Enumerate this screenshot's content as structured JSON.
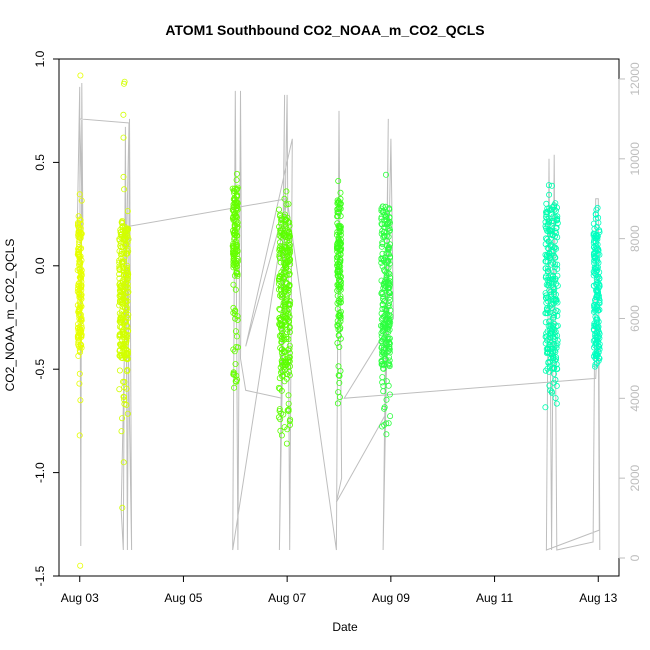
{
  "chart_data": {
    "type": "scatter",
    "title": "ATOM1 Southbound CO2_NOAA_m_CO2_QCLS",
    "xlabel": "Date",
    "ylabel": "CO2_NOAA_m_CO2_QCLS",
    "x_unit": "days since Aug 03",
    "xlim": [
      -0.4,
      10.4
    ],
    "ylim": [
      -1.5,
      1.0
    ],
    "y2lim": [
      0,
      12500
    ],
    "x_ticks": [
      {
        "value": 0,
        "label": "Aug 03"
      },
      {
        "value": 2,
        "label": "Aug 05"
      },
      {
        "value": 4,
        "label": "Aug 07"
      },
      {
        "value": 6,
        "label": "Aug 09"
      },
      {
        "value": 8,
        "label": "Aug 11"
      },
      {
        "value": 10,
        "label": "Aug 13"
      }
    ],
    "y_ticks": [
      {
        "value": -1.5,
        "label": "-1.5"
      },
      {
        "value": -1.0,
        "label": "-1.0"
      },
      {
        "value": -0.5,
        "label": "-0.5"
      },
      {
        "value": 0.0,
        "label": "0.0"
      },
      {
        "value": 0.5,
        "label": "0.5"
      },
      {
        "value": 1.0,
        "label": "1.0"
      }
    ],
    "y2_ticks": [
      {
        "value": 0,
        "label": "0"
      },
      {
        "value": 2000,
        "label": "2000"
      },
      {
        "value": 4000,
        "label": "4000"
      },
      {
        "value": 6000,
        "label": "6000"
      },
      {
        "value": 8000,
        "label": "8000"
      },
      {
        "value": 10000,
        "label": "10000"
      },
      {
        "value": 12000,
        "label": "12000"
      }
    ],
    "colors": {
      "altitude_line": "#bebebe",
      "points": [
        "#e6ff00",
        "#d2ff00",
        "#66ff00",
        "#5cff00",
        "#3dff1a",
        "#2dff40",
        "#00ffb0",
        "#00ffc0"
      ],
      "axes": "#000000",
      "right_axis": "#bdbdbd"
    },
    "clusters": [
      {
        "x": 0.0,
        "half_width": 0.04,
        "y_min": -0.6,
        "y_max": 0.35,
        "dense_min": -0.4,
        "dense_max": 0.25,
        "outliers": [
          0.92,
          -0.65,
          -0.82,
          -1.45
        ],
        "color": "#e6ff00",
        "n": 160
      },
      {
        "x": 0.85,
        "half_width": 0.09,
        "y_min": -0.75,
        "y_max": 0.3,
        "dense_min": -0.45,
        "dense_max": 0.2,
        "outliers": [
          0.89,
          0.88,
          0.73,
          0.62,
          0.43,
          0.37,
          -0.8,
          -1.17,
          -0.95
        ],
        "color": "#d2ff00",
        "n": 260
      },
      {
        "x": 3.0,
        "half_width": 0.05,
        "y_min": -0.6,
        "y_max": 0.45,
        "dense_min": -0.05,
        "dense_max": 0.38,
        "outliers": [
          -0.59
        ],
        "color": "#66ff00",
        "n": 150
      },
      {
        "x": 3.95,
        "half_width": 0.11,
        "y_min": -0.8,
        "y_max": 0.35,
        "dense_min": -0.55,
        "dense_max": 0.25,
        "outliers": [
          -0.82,
          -0.86,
          0.36
        ],
        "color": "#5cff00",
        "n": 280
      },
      {
        "x": 5.0,
        "half_width": 0.04,
        "y_min": -0.67,
        "y_max": 0.41,
        "dense_min": -0.35,
        "dense_max": 0.33,
        "outliers": [
          0.41
        ],
        "color": "#3dff1a",
        "n": 150
      },
      {
        "x": 5.9,
        "half_width": 0.09,
        "y_min": -0.83,
        "y_max": 0.29,
        "dense_min": -0.5,
        "dense_max": 0.28,
        "outliers": [
          0.44
        ],
        "color": "#2dff40",
        "n": 240
      },
      {
        "x": 9.1,
        "half_width": 0.12,
        "y_min": -0.75,
        "y_max": 0.39,
        "dense_min": -0.5,
        "dense_max": 0.3,
        "outliers": [
          0.39
        ],
        "color": "#00ffb0",
        "n": 260
      },
      {
        "x": 9.97,
        "half_width": 0.06,
        "y_min": -0.5,
        "y_max": 0.28,
        "dense_min": -0.45,
        "dense_max": 0.18,
        "outliers": [
          0.28,
          0.25
        ],
        "color": "#00ffc0",
        "n": 180
      }
    ],
    "altitude_track": [
      [
        -0.05,
        8000
      ],
      [
        0.0,
        11800
      ],
      [
        0.02,
        300
      ],
      [
        0.04,
        11900
      ],
      [
        0.06,
        8100
      ],
      [
        0.0,
        11000
      ],
      [
        0.95,
        10900
      ],
      [
        0.8,
        1200
      ],
      [
        0.84,
        200
      ],
      [
        0.88,
        10800
      ],
      [
        0.92,
        200
      ],
      [
        0.96,
        11000
      ],
      [
        1.0,
        200
      ],
      [
        0.9,
        8300
      ],
      [
        4.0,
        9000
      ],
      [
        2.95,
        200
      ],
      [
        3.0,
        11700
      ],
      [
        3.05,
        200
      ],
      [
        3.1,
        11700
      ],
      [
        3.12,
        7200
      ],
      [
        3.1,
        5000
      ],
      [
        3.2,
        4200
      ],
      [
        3.9,
        4000
      ],
      [
        3.95,
        11600
      ],
      [
        3.85,
        200
      ],
      [
        4.0,
        11600
      ],
      [
        4.05,
        200
      ],
      [
        4.1,
        10500
      ],
      [
        3.2,
        5300
      ],
      [
        4.0,
        9000
      ],
      [
        4.95,
        200
      ],
      [
        5.0,
        11200
      ],
      [
        5.05,
        2000
      ],
      [
        4.95,
        1400
      ],
      [
        5.9,
        3600
      ],
      [
        5.95,
        11000
      ],
      [
        5.85,
        200
      ],
      [
        6.0,
        10500
      ],
      [
        6.05,
        6000
      ],
      [
        5.1,
        4000
      ],
      [
        9.95,
        4500
      ],
      [
        10.0,
        5800
      ],
      [
        10.02,
        700
      ],
      [
        9.0,
        200
      ],
      [
        9.05,
        10000
      ],
      [
        9.1,
        200
      ],
      [
        9.15,
        10100
      ],
      [
        9.2,
        200
      ],
      [
        9.9,
        400
      ],
      [
        9.95,
        9000
      ],
      [
        10.0,
        9000
      ],
      [
        10.03,
        200
      ]
    ]
  }
}
